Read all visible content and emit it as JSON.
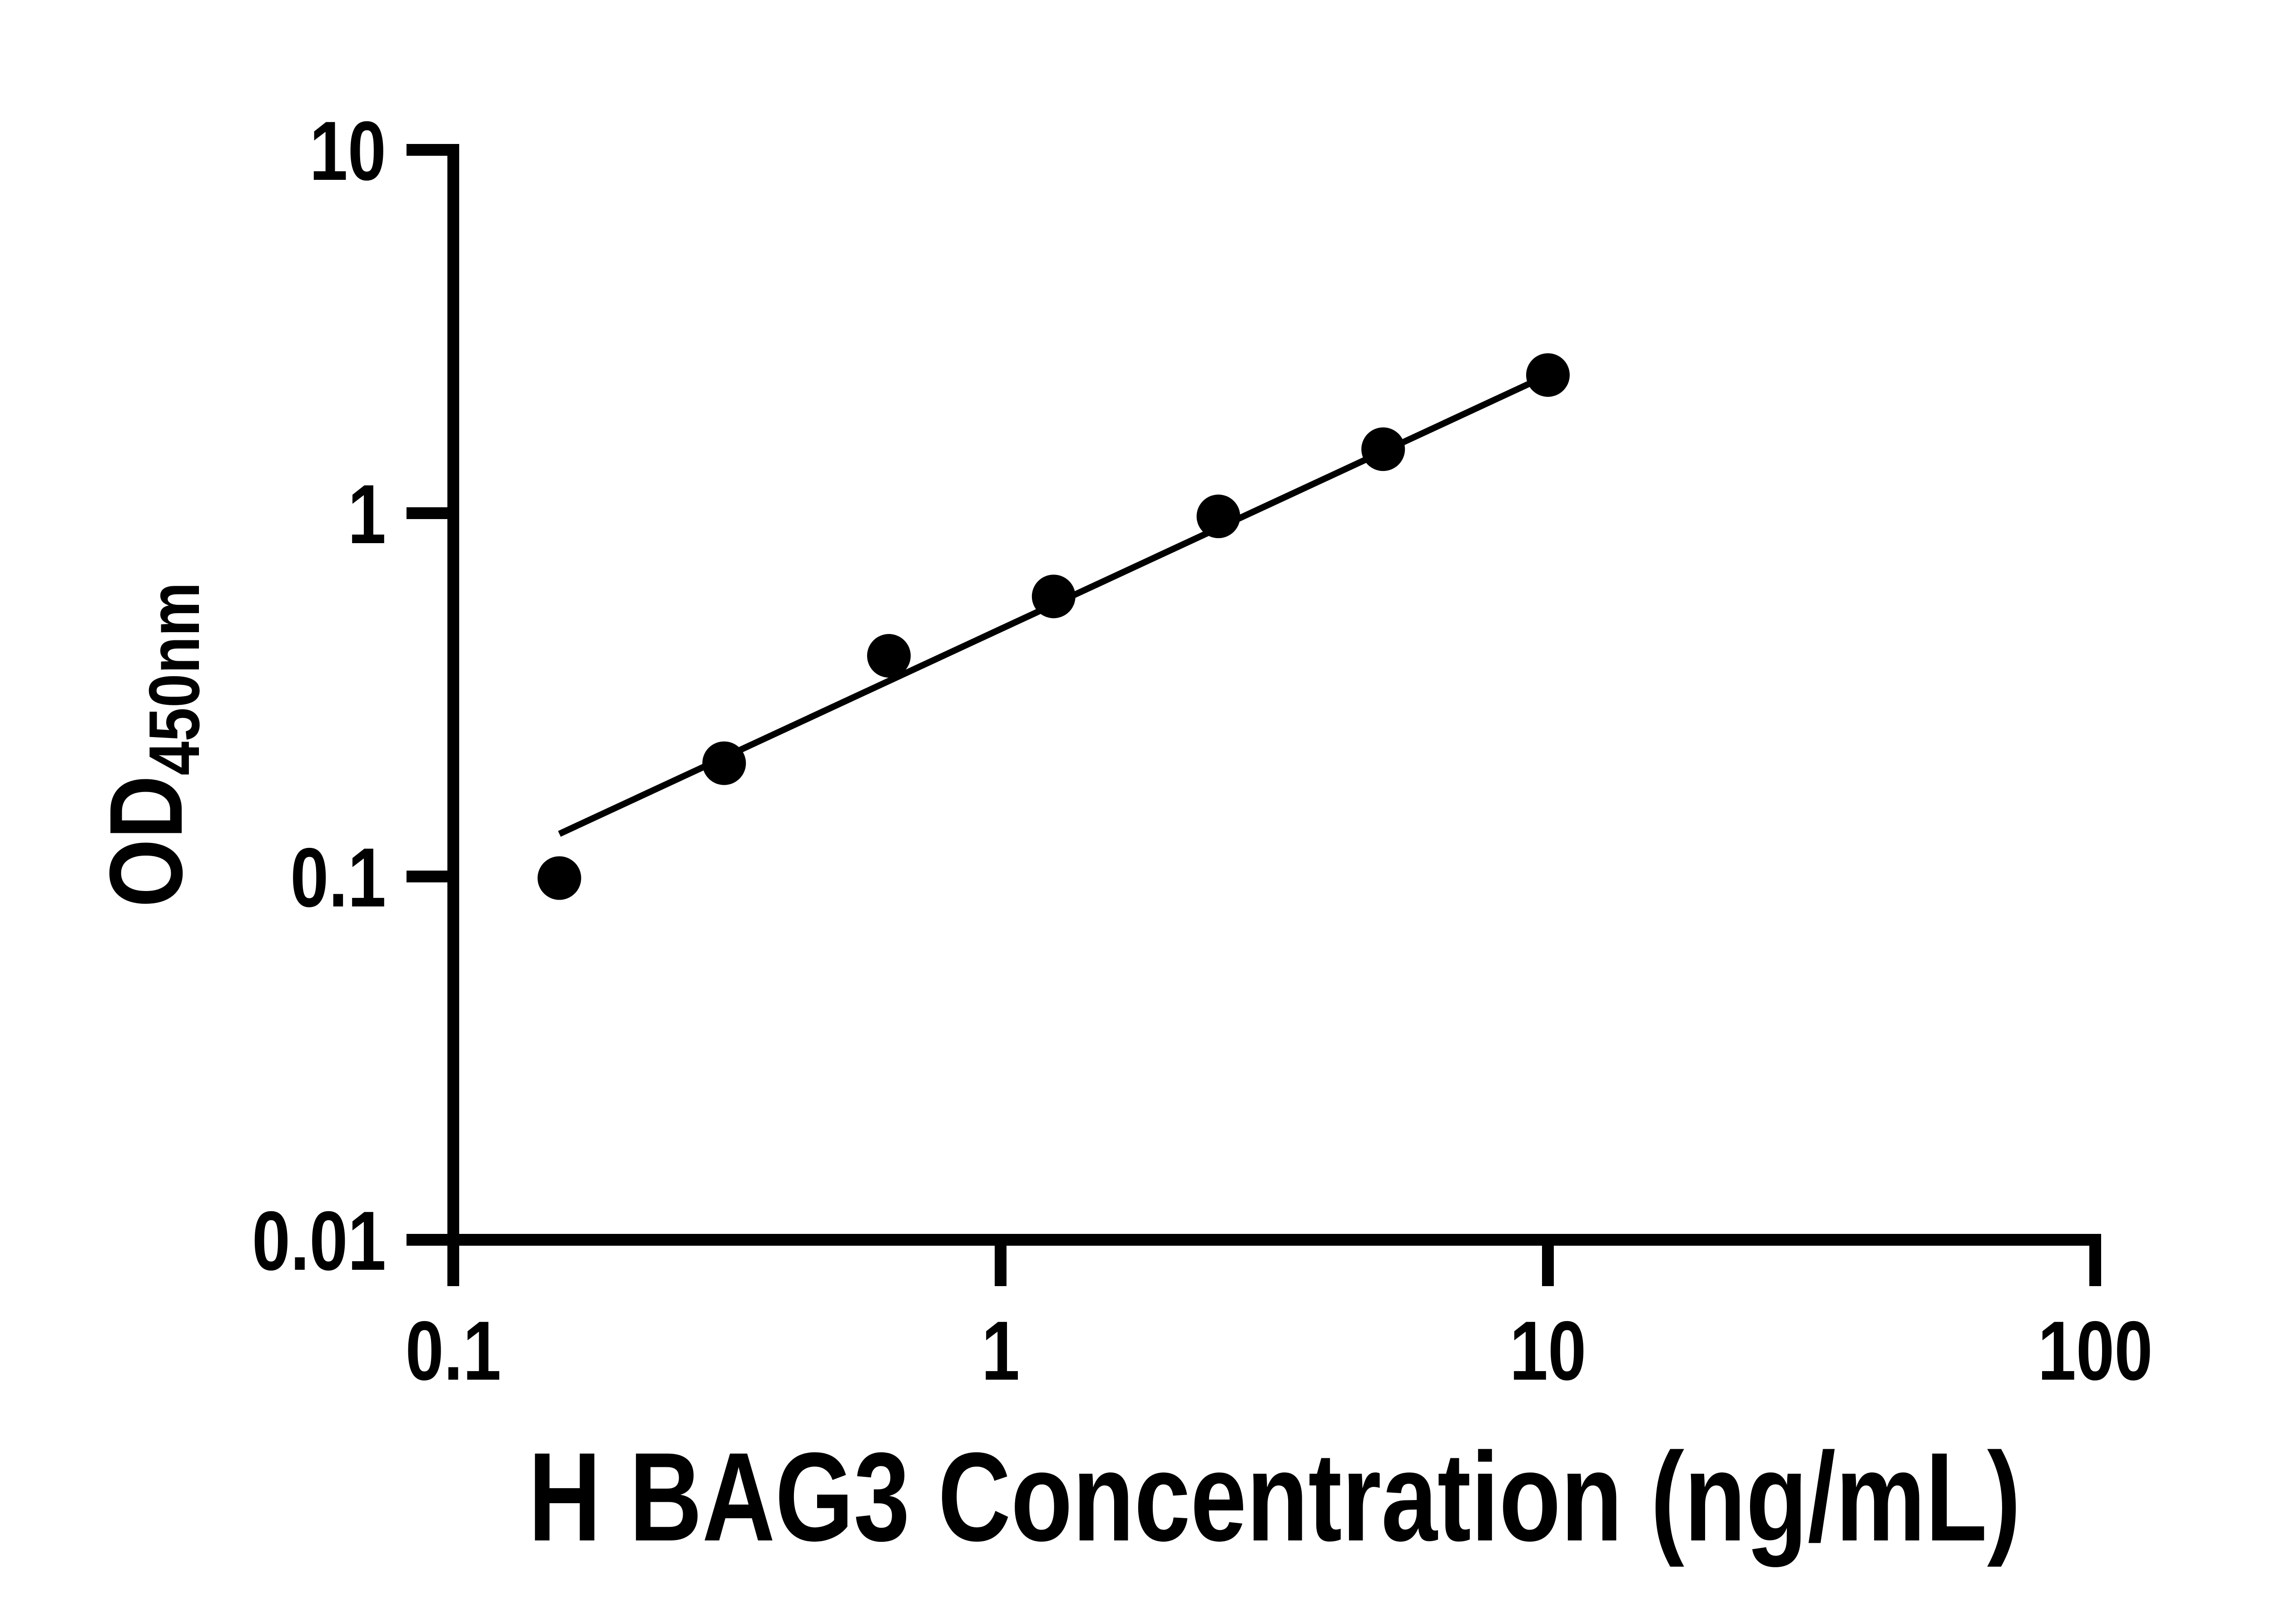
{
  "figure": {
    "background_color": "#ffffff",
    "ink_color": "#000000"
  },
  "chart_data": {
    "type": "scatter",
    "title": "",
    "xlabel": "H BAG3 Concentration (ng/mL)",
    "ylabel_main": "OD",
    "ylabel_subscript": "450nm",
    "x_scale": "log10",
    "y_scale": "log10",
    "xlim": [
      0.1,
      100
    ],
    "ylim": [
      0.01,
      10
    ],
    "grid": false,
    "legend": "none",
    "x_ticks": [
      {
        "value": 0.1,
        "label": "0.1"
      },
      {
        "value": 1,
        "label": "1"
      },
      {
        "value": 10,
        "label": "10"
      },
      {
        "value": 100,
        "label": "100"
      }
    ],
    "y_ticks": [
      {
        "value": 10,
        "label": "10"
      },
      {
        "value": 1,
        "label": "1"
      },
      {
        "value": 0.1,
        "label": "0.1"
      },
      {
        "value": 0.01,
        "label": "0.01"
      }
    ],
    "series": [
      {
        "name": "standard-curve",
        "marker": "filled-circle",
        "color": "#000000",
        "points": [
          {
            "x": 0.15625,
            "y": 0.099
          },
          {
            "x": 0.3125,
            "y": 0.205
          },
          {
            "x": 0.625,
            "y": 0.405
          },
          {
            "x": 1.25,
            "y": 0.59
          },
          {
            "x": 2.5,
            "y": 0.98
          },
          {
            "x": 5,
            "y": 1.5
          },
          {
            "x": 10,
            "y": 2.4
          }
        ]
      }
    ],
    "trend_line": {
      "type": "linear-fit-loglog",
      "x_start": 0.15625,
      "y_start": 0.131,
      "x_end": 10,
      "y_end": 2.4,
      "color": "#000000"
    }
  }
}
